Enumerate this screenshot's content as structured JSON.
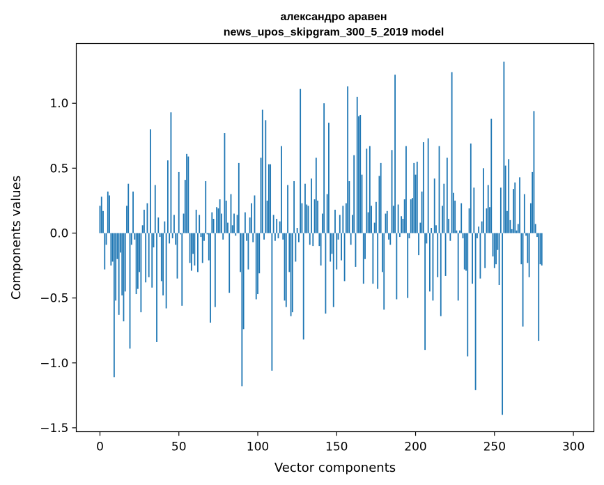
{
  "chart_data": {
    "type": "bar",
    "title_line1": "александро аравен",
    "title_line2": "news_upos_skipgram_300_5_2019 model",
    "xlabel": "Vector components",
    "ylabel": "Components values",
    "xlim": [
      -15,
      313
    ],
    "ylim": [
      -1.53,
      1.46
    ],
    "x_ticks": [
      0,
      50,
      100,
      150,
      200,
      250,
      300
    ],
    "x_tick_labels": [
      "0",
      "50",
      "100",
      "150",
      "200",
      "250",
      "300"
    ],
    "y_ticks": [
      1.0,
      0.5,
      0.0,
      -0.5,
      -1.0,
      -1.5
    ],
    "y_tick_labels": [
      "1.0",
      "0.5",
      "0.0",
      "−0.5",
      "−1.0",
      "−1.5"
    ],
    "bar_color": "#1f77b4",
    "grid": false,
    "values": [
      0.21,
      0.28,
      0.17,
      -0.28,
      -0.09,
      0.32,
      0.29,
      -0.25,
      -0.22,
      -1.11,
      -0.52,
      -0.2,
      -0.63,
      -0.15,
      -0.48,
      -0.68,
      -0.45,
      0.21,
      0.38,
      -0.89,
      -0.09,
      0.32,
      -0.05,
      -0.47,
      -0.43,
      -0.3,
      -0.61,
      0.06,
      0.18,
      -0.38,
      0.23,
      -0.34,
      0.8,
      -0.42,
      -0.11,
      0.37,
      -0.84,
      0.12,
      -0.03,
      -0.37,
      -0.48,
      0.09,
      -0.58,
      0.56,
      -0.08,
      0.93,
      -0.04,
      0.14,
      -0.09,
      -0.35,
      0.47,
      -0.01,
      -0.56,
      0.15,
      0.41,
      0.61,
      0.59,
      -0.23,
      -0.29,
      -0.16,
      -0.25,
      0.18,
      -0.3,
      0.14,
      -0.03,
      -0.23,
      -0.06,
      0.4,
      -0.01,
      -0.21,
      -0.69,
      0.16,
      0.11,
      -0.57,
      0.2,
      0.19,
      0.26,
      0.15,
      -0.05,
      0.77,
      0.25,
      0.08,
      -0.46,
      0.3,
      0.06,
      0.15,
      -0.02,
      0.14,
      0.54,
      -0.3,
      -1.18,
      -0.74,
      0.16,
      -0.06,
      -0.28,
      0.12,
      0.23,
      -0.07,
      0.29,
      -0.51,
      -0.47,
      -0.31,
      0.58,
      0.95,
      -0.05,
      0.87,
      0.25,
      0.53,
      0.53,
      -1.06,
      0.14,
      -0.06,
      0.11,
      -0.04,
      0.09,
      0.67,
      -0.05,
      -0.52,
      -0.57,
      0.37,
      -0.3,
      -0.64,
      -0.61,
      0.4,
      -0.22,
      0.04,
      -0.07,
      1.11,
      0.23,
      -0.82,
      0.38,
      0.22,
      0.21,
      -0.09,
      0.42,
      -0.1,
      0.26,
      0.58,
      0.25,
      -0.1,
      -0.25,
      0.15,
      1.0,
      -0.62,
      0.3,
      0.85,
      -0.22,
      -0.16,
      -0.57,
      0.18,
      -0.28,
      -0.05,
      0.14,
      -0.21,
      0.21,
      -0.37,
      0.23,
      1.13,
      0.4,
      -0.09,
      0.14,
      0.6,
      -0.26,
      1.05,
      0.9,
      0.91,
      0.45,
      -0.39,
      -0.2,
      0.65,
      0.16,
      0.67,
      0.21,
      -0.39,
      0.08,
      0.24,
      -0.43,
      0.44,
      0.54,
      -0.3,
      -0.59,
      0.15,
      0.17,
      -0.05,
      -0.09,
      0.64,
      0.21,
      1.22,
      -0.51,
      0.22,
      -0.03,
      0.13,
      0.11,
      0.26,
      0.67,
      -0.5,
      -0.04,
      0.26,
      0.27,
      0.54,
      0.45,
      0.55,
      -0.17,
      0.08,
      0.32,
      0.7,
      -0.9,
      -0.08,
      0.73,
      -0.45,
      0.04,
      -0.52,
      0.42,
      0.06,
      -0.34,
      0.67,
      -0.64,
      0.21,
      0.38,
      -0.33,
      0.58,
      0.11,
      -0.06,
      1.24,
      0.31,
      0.25,
      0.02,
      -0.52,
      0.02,
      0.23,
      -0.04,
      -0.28,
      -0.29,
      -0.95,
      0.19,
      0.69,
      -0.39,
      0.35,
      -1.21,
      -0.04,
      0.05,
      -0.35,
      0.09,
      0.5,
      -0.27,
      0.19,
      0.37,
      0.2,
      0.88,
      -0.18,
      -0.27,
      -0.24,
      -0.13,
      -0.4,
      0.35,
      -1.4,
      1.32,
      0.52,
      0.17,
      0.57,
      0.1,
      0.03,
      0.34,
      0.39,
      0.02,
      0.07,
      0.43,
      -0.24,
      -0.72,
      0.3,
      -0.02,
      -0.23,
      -0.34,
      0.23,
      0.47,
      0.94,
      0.07,
      -0.03,
      -0.83,
      -0.24,
      -0.25
    ]
  }
}
